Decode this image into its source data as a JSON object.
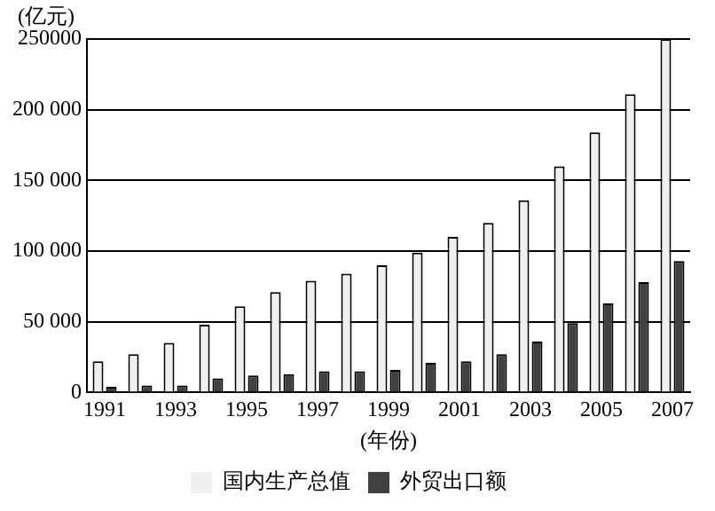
{
  "chart_data": {
    "type": "bar",
    "xlabel": "(年份)",
    "ylabel": "(亿元)",
    "categories": [
      "1991",
      null,
      "1993",
      null,
      "1995",
      null,
      "1997",
      null,
      "1999",
      null,
      "2001",
      null,
      "2003",
      null,
      "2005",
      null,
      "2007"
    ],
    "series": [
      {
        "name": "国内生产总值",
        "color": "#f0f0f0",
        "values": [
          22000,
          27000,
          35000,
          48000,
          61000,
          71000,
          79000,
          84000,
          90000,
          99000,
          110000,
          120000,
          136000,
          160000,
          184000,
          211000,
          250000
        ]
      },
      {
        "name": "外贸出口额",
        "color": "#404040",
        "values": [
          4000,
          5000,
          5000,
          10000,
          12000,
          13000,
          15000,
          15000,
          16000,
          21000,
          22000,
          27000,
          36000,
          49000,
          63000,
          78000,
          93000
        ]
      }
    ],
    "ylim": [
      0,
      250000
    ],
    "yticks": [
      0,
      {
        "value": 50000,
        "label": "50 000"
      },
      {
        "value": 100000,
        "label": "100 000"
      },
      {
        "value": 150000,
        "label": "150 000"
      },
      {
        "value": 200000,
        "label": "200 000"
      },
      250000
    ],
    "grid": "y",
    "legend": "bottom"
  }
}
